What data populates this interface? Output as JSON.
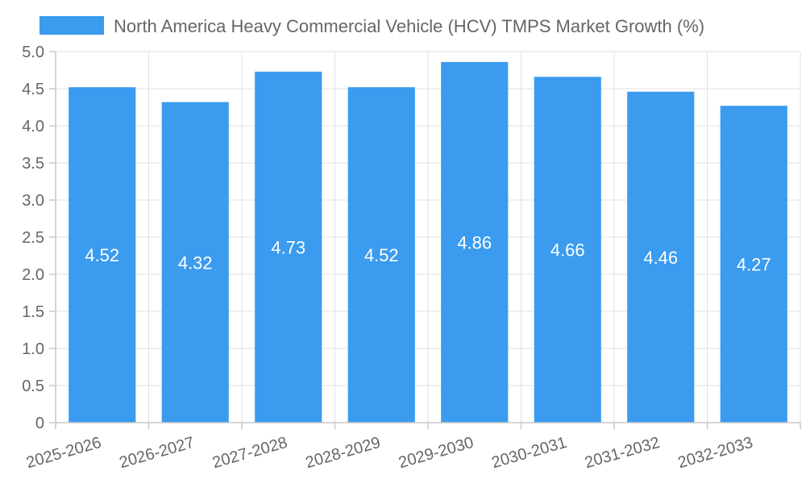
{
  "chart_data": {
    "type": "bar",
    "title": "",
    "xlabel": "",
    "ylabel": "",
    "categories": [
      "2025-2026",
      "2026-2027",
      "2027-2028",
      "2028-2029",
      "2029-2030",
      "2030-2031",
      "2031-2032",
      "2032-2033"
    ],
    "series": [
      {
        "name": "North America Heavy Commercial Vehicle (HCV) TMPS Market Growth (%)",
        "values": [
          4.52,
          4.32,
          4.73,
          4.52,
          4.86,
          4.66,
          4.46,
          4.27
        ],
        "color": "#3a9bef"
      }
    ],
    "data_labels": [
      "4.52",
      "4.32",
      "4.73",
      "4.52",
      "4.86",
      "4.66",
      "4.46",
      "4.27"
    ],
    "ylim": [
      0,
      5
    ],
    "y_ticks": [
      "0",
      "0.5",
      "1.0",
      "1.5",
      "2.0",
      "2.5",
      "3.0",
      "3.5",
      "4.0",
      "4.5",
      "5.0"
    ],
    "y_tick_values": [
      0,
      0.5,
      1.0,
      1.5,
      2.0,
      2.5,
      3.0,
      3.5,
      4.0,
      4.5,
      5.0
    ],
    "grid": true,
    "legend_position": "top-center"
  }
}
